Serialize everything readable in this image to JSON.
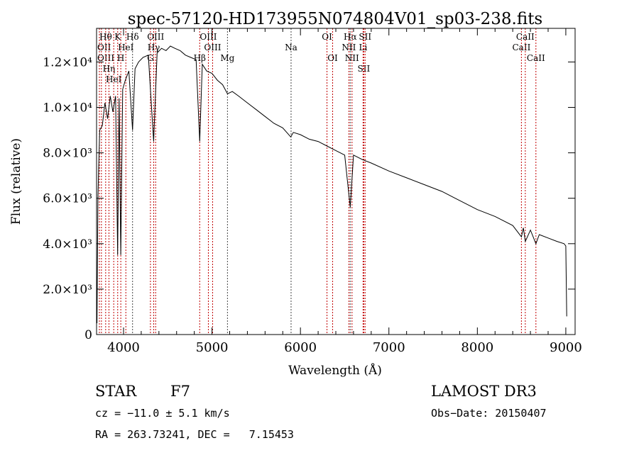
{
  "chart_data": {
    "type": "line",
    "title": "spec-57120-HD173955N074804V01_sp03-238.fits",
    "xlabel": "Wavelength (Å)",
    "ylabel": "Flux (relative)",
    "xlim": [
      3695,
      9105
    ],
    "ylim": [
      0,
      13480
    ],
    "xticks": [
      {
        "v": 4000,
        "label": "4000"
      },
      {
        "v": 5000,
        "label": "5000"
      },
      {
        "v": 6000,
        "label": "6000"
      },
      {
        "v": 7000,
        "label": "7000"
      },
      {
        "v": 8000,
        "label": "8000"
      },
      {
        "v": 9000,
        "label": "9000"
      }
    ],
    "yticks": [
      {
        "v": 0,
        "label": "0"
      },
      {
        "v": 2000,
        "label": "2.0×10³"
      },
      {
        "v": 4000,
        "label": "4.0×10³"
      },
      {
        "v": 6000,
        "label": "6.0×10³"
      },
      {
        "v": 8000,
        "label": "8.0×10³"
      },
      {
        "v": 10000,
        "label": "1.0×10⁴"
      },
      {
        "v": 12000,
        "label": "1.2×10⁴"
      }
    ],
    "series": [
      {
        "name": "spectrum",
        "x": [
          3700,
          3710,
          3730,
          3760,
          3790,
          3820,
          3850,
          3880,
          3910,
          3933,
          3950,
          3969,
          3990,
          4020,
          4060,
          4102,
          4130,
          4170,
          4220,
          4280,
          4340,
          4380,
          4430,
          4480,
          4530,
          4580,
          4640,
          4700,
          4760,
          4820,
          4861,
          4890,
          4940,
          5000,
          5060,
          5120,
          5175,
          5230,
          5300,
          5400,
          5500,
          5600,
          5700,
          5800,
          5890,
          5920,
          6000,
          6100,
          6200,
          6300,
          6400,
          6500,
          6563,
          6600,
          6700,
          6800,
          7000,
          7200,
          7400,
          7600,
          7800,
          8000,
          8200,
          8400,
          8498,
          8520,
          8542,
          8600,
          8662,
          8700,
          8800,
          8900,
          8980,
          9000,
          9010
        ],
        "y": [
          500,
          6000,
          9000,
          9200,
          10200,
          9500,
          10500,
          9800,
          10500,
          3500,
          10400,
          3500,
          10800,
          11200,
          11600,
          9000,
          11700,
          12000,
          12200,
          12300,
          8500,
          12400,
          12600,
          12500,
          12700,
          12600,
          12500,
          12300,
          12200,
          12100,
          8500,
          11900,
          11600,
          11500,
          11200,
          11000,
          10600,
          10700,
          10500,
          10200,
          9900,
          9600,
          9300,
          9100,
          8700,
          8900,
          8800,
          8600,
          8500,
          8300,
          8100,
          7900,
          5600,
          7900,
          7700,
          7550,
          7200,
          6900,
          6600,
          6300,
          5900,
          5500,
          5200,
          4800,
          4300,
          4700,
          4100,
          4600,
          4000,
          4400,
          4250,
          4100,
          4000,
          3900,
          800
        ]
      }
    ],
    "lines": [
      {
        "w": 3727,
        "label": "OII",
        "row": 1,
        "color": "#c00000"
      },
      {
        "w": 3750,
        "label": "OIII",
        "row": 2,
        "color": "#c00000"
      },
      {
        "w": 3798,
        "label": "Hθ",
        "row": 0,
        "color": "#c00000"
      },
      {
        "w": 3835,
        "label": "Hη",
        "row": 2,
        "color": "#c00000"
      },
      {
        "w": 3889,
        "label": "HeI",
        "row": 1,
        "color": "#c00000"
      },
      {
        "w": 3934,
        "label": "K",
        "row": 0,
        "color": "#c00000"
      },
      {
        "w": 3969,
        "label": "H",
        "row": 2,
        "color": "#c00000"
      },
      {
        "w": 4026,
        "label": "HeI",
        "row": 1,
        "color": "#c00000"
      },
      {
        "w": 4102,
        "label": "Hδ",
        "row": 0,
        "color": "#444444"
      },
      {
        "w": 4304,
        "label": "G",
        "row": 2,
        "color": "#c00000"
      },
      {
        "w": 4341,
        "label": "Hγ",
        "row": 1,
        "color": "#c00000"
      },
      {
        "w": 4363,
        "label": "OIII",
        "row": 0,
        "color": "#c00000"
      },
      {
        "w": 4861,
        "label": "Hβ",
        "row": 2,
        "color": "#c00000"
      },
      {
        "w": 4959,
        "label": "OIII",
        "row": 0,
        "color": "#c00000"
      },
      {
        "w": 5007,
        "label": "OIII",
        "row": 1,
        "color": "#c00000"
      },
      {
        "w": 5175,
        "label": "Mg",
        "row": 2,
        "color": "#444444"
      },
      {
        "w": 5894,
        "label": "Na",
        "row": 1,
        "color": "#444444"
      },
      {
        "w": 6300,
        "label": "OI",
        "row": 0,
        "color": "#c00000"
      },
      {
        "w": 6364,
        "label": "OI",
        "row": 2,
        "color": "#c00000"
      },
      {
        "w": 6548,
        "label": "NII",
        "row": 1,
        "color": "#c00000"
      },
      {
        "w": 6563,
        "label": "Hα",
        "row": 0,
        "color": "#444444"
      },
      {
        "w": 6583,
        "label": "NII",
        "row": 2,
        "color": "#c00000"
      },
      {
        "w": 6708,
        "label": "Li",
        "row": 1,
        "color": "#c00000"
      },
      {
        "w": 6716,
        "label": "SII",
        "row": 0,
        "color": "#c00000"
      },
      {
        "w": 6731,
        "label": "SII",
        "row": 2,
        "color": "#c00000"
      },
      {
        "w": 8498,
        "label": "CaII",
        "row": 1,
        "color": "#c00000"
      },
      {
        "w": 8542,
        "label": "CaII",
        "row": 0,
        "color": "#c00000"
      },
      {
        "w": 8662,
        "label": "CaII",
        "row": 2,
        "color": "#c00000"
      }
    ]
  },
  "info": {
    "object_type": "STAR",
    "subclass": "F7",
    "survey": "LAMOST DR3",
    "cz": "cz = −11.0 ± 5.1 km/s",
    "obs_date": "Obs−Date: 20150407",
    "radec": "RA = 263.73241, DEC =   7.15453"
  }
}
